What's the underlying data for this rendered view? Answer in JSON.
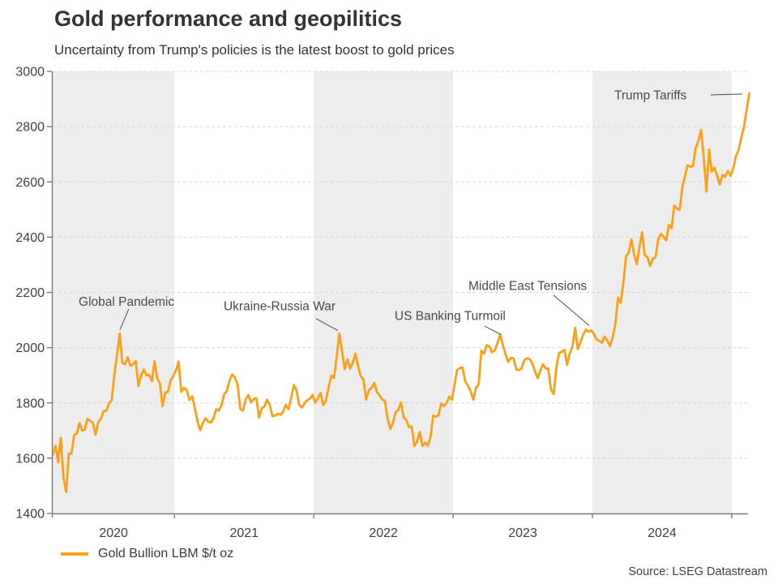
{
  "page": {
    "source": "Source: LSEG Datastream"
  },
  "legend": {
    "label": "Gold Bullion LBM $/t oz"
  },
  "colors": {
    "line": "#FBA019",
    "band": "#EDEDED",
    "grid": "#D8D8D8",
    "axis": "#7C7C7C",
    "tick_text": "#3F3F3F",
    "title_text": "#333333",
    "annotation_text": "#4A4A4A",
    "annotation_line": "#5A5A5A"
  },
  "chart_data": {
    "type": "line",
    "title": "Gold performance and geopilitics",
    "subtitle": "Uncertainty from Trump's policies is the latest boost to gold prices",
    "xlabel": "",
    "ylabel": "",
    "ylim": [
      1400,
      3000
    ],
    "xlim_years": [
      2020.126,
      2025.14
    ],
    "grid": "horizontal-dashed",
    "legend_position": "bottom-left",
    "y_ticks": [
      1400,
      1600,
      1800,
      2000,
      2200,
      2400,
      2600,
      2800,
      3000
    ],
    "x_tick_years": [
      2021,
      2022,
      2023,
      2024,
      2025
    ],
    "x_labels": [
      "2020",
      "2021",
      "2022",
      "2023",
      "2024"
    ],
    "shaded_years": [
      2020,
      2022,
      2024
    ],
    "series": [
      {
        "name": "Gold Bullion LBM $/t oz",
        "unit": "$/t oz",
        "start_time_years": 2020.126,
        "step_years": 0.0192308,
        "values": [
          1612,
          1645,
          1585,
          1674,
          1530,
          1478,
          1617,
          1616,
          1683,
          1689,
          1727,
          1700,
          1704,
          1742,
          1735,
          1728,
          1685,
          1731,
          1743,
          1771,
          1772,
          1798,
          1810,
          1901,
          1974,
          2051,
          1945,
          1940,
          1965,
          1934,
          1940,
          1951,
          1861,
          1900,
          1921,
          1899,
          1902,
          1879,
          1951,
          1889,
          1871,
          1788,
          1838,
          1840,
          1881,
          1898,
          1917,
          1950,
          1840,
          1855,
          1847,
          1810,
          1824,
          1784,
          1734,
          1701,
          1726,
          1745,
          1732,
          1729,
          1744,
          1777,
          1772,
          1792,
          1831,
          1844,
          1881,
          1903,
          1892,
          1865,
          1778,
          1772,
          1812,
          1829,
          1802,
          1814,
          1817,
          1747,
          1781,
          1787,
          1812,
          1794,
          1752,
          1754,
          1761,
          1757,
          1768,
          1793,
          1777,
          1818,
          1865,
          1845,
          1792,
          1783,
          1798,
          1810,
          1815,
          1829,
          1801,
          1817,
          1836,
          1792,
          1808,
          1859,
          1899,
          1890,
          1970,
          2051,
          1985,
          1922,
          1958,
          1924,
          1946,
          1978,
          1932,
          1897,
          1884,
          1812,
          1846,
          1854,
          1872,
          1840,
          1827,
          1812,
          1808,
          1742,
          1706,
          1727,
          1766,
          1775,
          1802,
          1747,
          1738,
          1712,
          1715,
          1644,
          1661,
          1695,
          1644,
          1657,
          1645,
          1677,
          1754,
          1750,
          1755,
          1798,
          1789,
          1800,
          1823,
          1812,
          1866,
          1920,
          1926,
          1928,
          1877,
          1862,
          1842,
          1811,
          1856,
          1868,
          1989,
          1978,
          2009,
          2004,
          1983,
          1990,
          2016,
          2048,
          2011,
          1977,
          1948,
          1963,
          1961,
          1921,
          1919,
          1925,
          1955,
          1962,
          1959,
          1943,
          1915,
          1889,
          1918,
          1940,
          1924,
          1925,
          1848,
          1832,
          1928,
          1981,
          1985,
          1992,
          1938,
          1980,
          2004,
          2072,
          1995,
          2020,
          2047,
          2065,
          2058,
          2063,
          2050,
          2030,
          2025,
          2018,
          2040,
          2026,
          2006,
          2037,
          2085,
          2182,
          2162,
          2235,
          2330,
          2345,
          2392,
          2338,
          2302,
          2362,
          2418,
          2335,
          2328,
          2296,
          2322,
          2328,
          2392,
          2412,
          2402,
          2388,
          2444,
          2432,
          2514,
          2504,
          2498,
          2580,
          2622,
          2660,
          2655,
          2657,
          2722,
          2748,
          2788,
          2686,
          2565,
          2717,
          2637,
          2651,
          2622,
          2590,
          2625,
          2618,
          2640,
          2622,
          2648,
          2692,
          2715,
          2758,
          2798,
          2862,
          2920
        ]
      }
    ],
    "annotations": [
      {
        "label": "Global Pandemic",
        "text_t": 2020.312,
        "text_v": 2168,
        "anchor": "start",
        "line_t": [
          2020.672,
          2020.608
        ],
        "line_v": [
          2140,
          2064
        ]
      },
      {
        "label": "Ukraine-Russia War",
        "text_t": 2021.353,
        "text_v": 2152,
        "anchor": "start",
        "line_t": [
          2022.016,
          2022.173
        ],
        "line_v": [
          2105,
          2062
        ]
      },
      {
        "label": "US Banking Turmoil",
        "text_t": 2022.58,
        "text_v": 2116,
        "anchor": "start",
        "line_t": [
          2023.226,
          2023.342
        ],
        "line_v": [
          2078,
          2048
        ]
      },
      {
        "label": "Middle East Tensions",
        "text_t": 2023.11,
        "text_v": 2225,
        "anchor": "start",
        "line_t": [
          2023.721,
          2023.977
        ],
        "line_v": [
          2190,
          2080
        ]
      },
      {
        "label": "Trump Tariffs",
        "text_t": 2024.157,
        "text_v": 2915,
        "anchor": "start",
        "line_t": [
          2024.849,
          2025.076
        ],
        "line_v": [
          2915,
          2918
        ]
      }
    ]
  }
}
